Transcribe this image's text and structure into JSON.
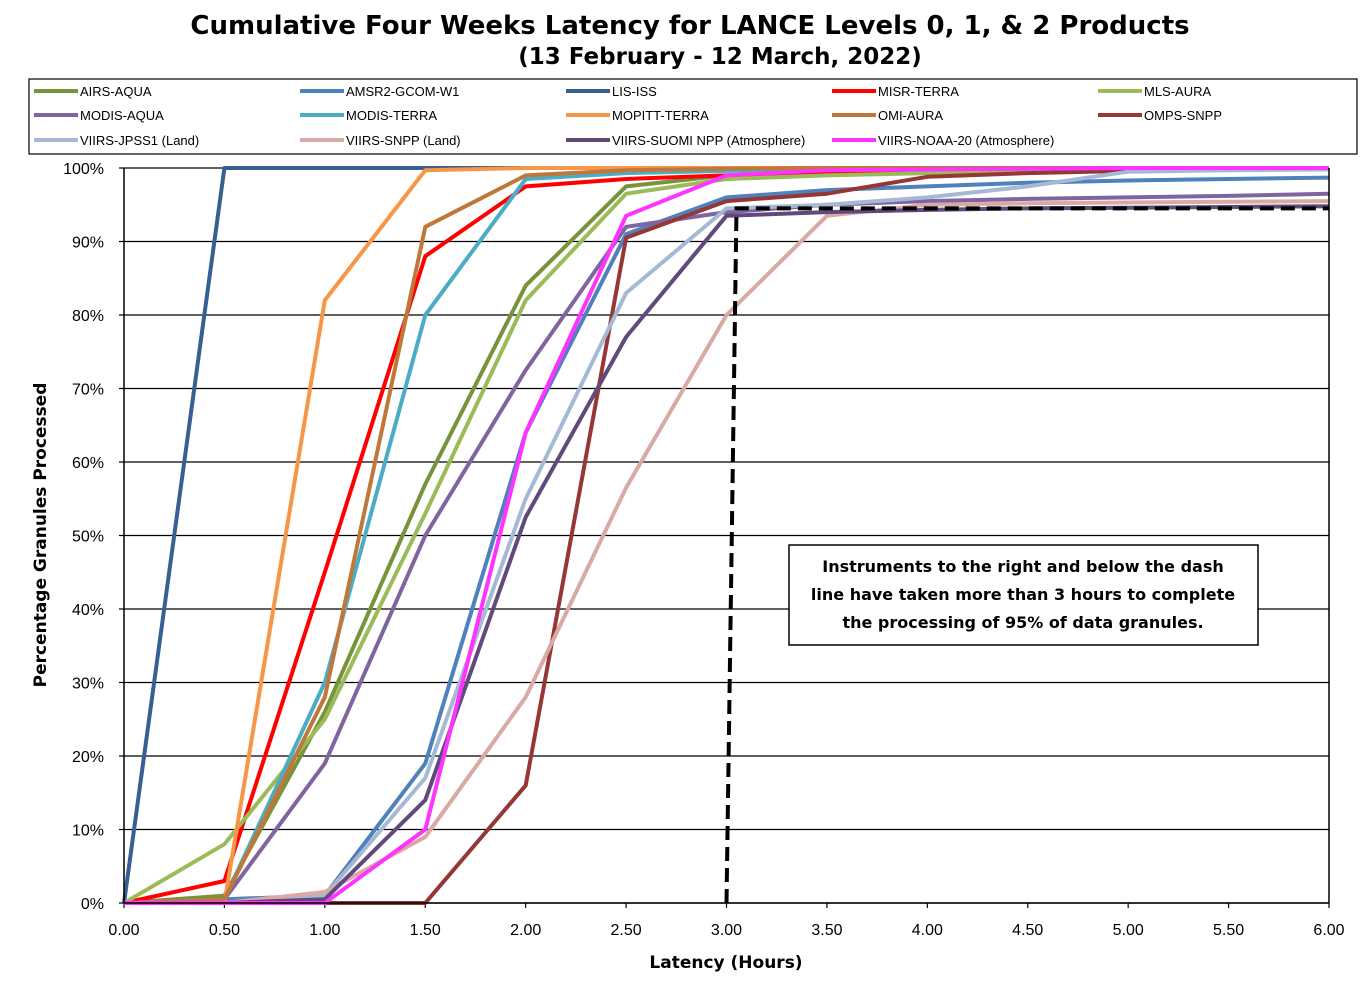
{
  "chart_data": {
    "type": "line",
    "title": "Cumulative Four Weeks Latency  for LANCE Levels 0, 1, & 2 Products",
    "subtitle": "(13  February  -  12  March,  2022)",
    "xlabel": "Latency (Hours)",
    "ylabel": "Percentage Granules Processed",
    "xlim": [
      0,
      6
    ],
    "ylim": [
      0,
      100
    ],
    "x": [
      0,
      0.5,
      1,
      1.5,
      2,
      2.5,
      3,
      3.5,
      4,
      4.5,
      5,
      5.5,
      6
    ],
    "x_tick_labels": [
      "0.00",
      "0.50",
      "1.00",
      "1.50",
      "2.00",
      "2.50",
      "3.00",
      "3.50",
      "4.00",
      "4.50",
      "5.00",
      "5.50",
      "6.00"
    ],
    "y_tick_labels": [
      "0%",
      "10%",
      "20%",
      "30%",
      "40%",
      "50%",
      "60%",
      "70%",
      "80%",
      "90%",
      "100%"
    ],
    "grid": "horizontal",
    "legend_position": "top",
    "series": [
      {
        "name": "AIRS-AQUA",
        "color": "#77933c",
        "values": [
          0,
          1,
          26,
          57,
          84,
          97.5,
          99,
          99.5,
          99.7,
          99.8,
          99.9,
          100,
          100
        ]
      },
      {
        "name": "AMSR2-GCOM-W1",
        "color": "#4f81bd",
        "values": [
          0,
          0.5,
          1,
          19,
          64,
          91,
          96,
          97,
          97.5,
          98,
          98.3,
          98.5,
          98.7
        ]
      },
      {
        "name": "LIS-ISS",
        "color": "#376092",
        "values": [
          0,
          100,
          100,
          100,
          100,
          100,
          100,
          100,
          100,
          100,
          100,
          100,
          100
        ]
      },
      {
        "name": "MISR-TERRA",
        "color": "#ff0000",
        "values": [
          0,
          3,
          45,
          88,
          97.5,
          98.5,
          99,
          99.3,
          99.5,
          99.7,
          99.8,
          99.9,
          100
        ]
      },
      {
        "name": "MLS-AURA",
        "color": "#9bbb59",
        "values": [
          0,
          8,
          25,
          53,
          82,
          96.5,
          98.5,
          99,
          99.3,
          99.5,
          99.7,
          99.8,
          99.9
        ]
      },
      {
        "name": "MODIS-AQUA",
        "color": "#8064a2",
        "values": [
          0,
          0.5,
          19,
          50,
          72.5,
          92,
          94,
          95,
          95.5,
          95.8,
          96,
          96.2,
          96.5
        ]
      },
      {
        "name": "MODIS-TERRA",
        "color": "#4bacc6",
        "values": [
          0,
          0.5,
          30,
          80,
          98.5,
          99.3,
          99.6,
          99.8,
          99.9,
          100,
          100,
          100,
          100
        ]
      },
      {
        "name": "MOPITT-TERRA",
        "color": "#f79646",
        "values": [
          0,
          0,
          82,
          99.7,
          100,
          100,
          100,
          100,
          100,
          100,
          100,
          100,
          100
        ]
      },
      {
        "name": "OMI-AURA",
        "color": "#c0783a",
        "values": [
          0,
          0.5,
          28,
          92,
          99,
          99.7,
          99.9,
          100,
          100,
          100,
          100,
          100,
          100
        ]
      },
      {
        "name": "OMPS-SNPP",
        "color": "#953735",
        "values": [
          0,
          0,
          0,
          0,
          16,
          90.5,
          95.5,
          96.5,
          98.8,
          99.3,
          99.6,
          99.8,
          100
        ]
      },
      {
        "name": "VIIRS-JPSS1 (Land)",
        "color": "#a6b9d4",
        "values": [
          0,
          0,
          1,
          17,
          55,
          83,
          94.5,
          95,
          96,
          97.5,
          99.5,
          99.7,
          99.8
        ]
      },
      {
        "name": "VIIRS-SNPP (Land)",
        "color": "#d9a9a4",
        "values": [
          0,
          0,
          1.5,
          9,
          28,
          56.5,
          80,
          93.5,
          95,
          95.2,
          95.3,
          95.4,
          95.5
        ]
      },
      {
        "name": "VIIRS-SUOMI NPP (Atmosphere)",
        "color": "#604a7b",
        "values": [
          0,
          0,
          0.5,
          14,
          52.5,
          77,
          93.5,
          94,
          94.3,
          94.5,
          94.6,
          94.7,
          94.8
        ]
      },
      {
        "name": "VIIRS-NOAA-20 (Atmosphere)",
        "color": "#ff33ff",
        "values": [
          0,
          0,
          0,
          10,
          64,
          93.5,
          99,
          99.7,
          99.8,
          99.9,
          100,
          100,
          100
        ]
      }
    ],
    "reference_line": {
      "style": "dashed",
      "color": "#000000",
      "x": [
        3,
        3.05,
        6
      ],
      "y": [
        0,
        94.5,
        94.5
      ]
    },
    "annotation": {
      "lines": [
        "Instruments to the right and below the dash",
        "line have taken more than 3 hours to complete",
        "the processing of 95% of data granules."
      ]
    }
  }
}
